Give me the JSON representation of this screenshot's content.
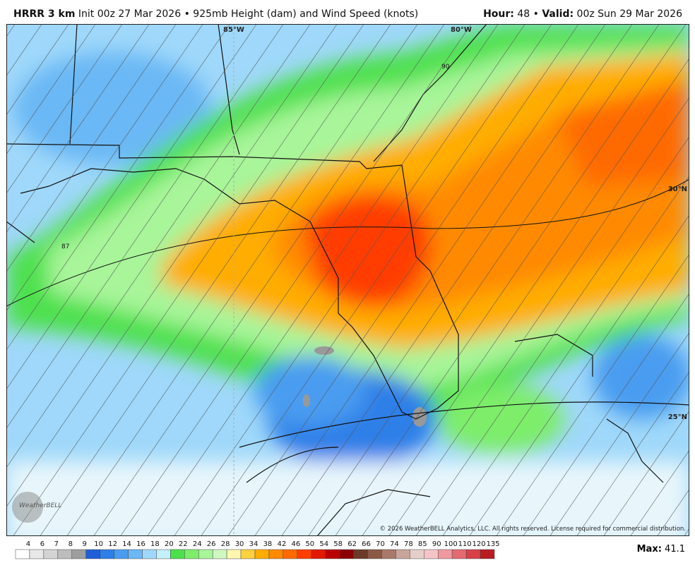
{
  "header": {
    "title": "HRRR 3 km",
    "init_label": "Init",
    "init": "00z 27 Mar 2026",
    "separator": "•",
    "product": "925mb Height (dam) and Wind Speed (knots)",
    "hour_label": "Hour:",
    "hour": "48",
    "valid_label": "Valid:",
    "valid": "00z Sun 29 Mar 2026"
  },
  "map": {
    "grid_labels": [
      "85°W",
      "80°W",
      "30°N",
      "25°N"
    ],
    "contour_labels": [
      "87",
      "90"
    ],
    "logo": "WeatherBELL",
    "copyright": "© 2026 WeatherBELL Analytics, LLC. All rights reserved. License required for commercial distribution."
  },
  "colorbar": {
    "levels": [
      4,
      6,
      7,
      8,
      9,
      10,
      12,
      14,
      16,
      18,
      20,
      22,
      24,
      26,
      28,
      30,
      34,
      38,
      42,
      46,
      50,
      54,
      58,
      62,
      66,
      70,
      74,
      78,
      85,
      90,
      100,
      110,
      120,
      135
    ],
    "colors": [
      "#ffffff",
      "#e8e8e8",
      "#d4d4d4",
      "#bdbdbd",
      "#9e9e9e",
      "#1e5ed6",
      "#2f7fe8",
      "#4a9cf0",
      "#6bb8f5",
      "#9fd8fa",
      "#c4f0fb",
      "#4de04d",
      "#7ded6a",
      "#a8f59a",
      "#cff8c0",
      "#fff7b0",
      "#ffd040",
      "#ffad00",
      "#ff8a00",
      "#ff6a00",
      "#ff3e00",
      "#e01a00",
      "#b80000",
      "#8b0000",
      "#6b3a2a",
      "#8b5a46",
      "#a8786a",
      "#c9a49a",
      "#e6cfc9",
      "#f5c4c8",
      "#ee9aa0",
      "#e46a72",
      "#d84048",
      "#b81c22"
    ]
  },
  "max": {
    "label": "Max:",
    "value": 41.1
  }
}
